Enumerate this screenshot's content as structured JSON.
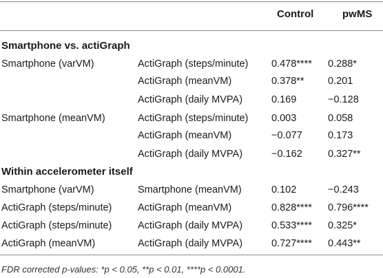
{
  "header": {
    "col_control": "Control",
    "col_pwms": "pwMS"
  },
  "sections": {
    "s1_title": "Smartphone vs. actiGraph",
    "s2_title": "Within accelerometer itself"
  },
  "rows": [
    {
      "m1": "Smartphone (varVM)",
      "m2": "ActiGraph (steps/minute)",
      "control": "0.478****",
      "pwms": "0.288*"
    },
    {
      "m1": "",
      "m2": "ActiGraph (meanVM)",
      "control": "0.378**",
      "pwms": "0.201"
    },
    {
      "m1": "",
      "m2": "ActiGraph (daily MVPA)",
      "control": "0.169",
      "pwms": "−0.128"
    },
    {
      "m1": "Smartphone (meanVM)",
      "m2": "ActiGraph (steps/minute)",
      "control": "0.003",
      "pwms": "0.058"
    },
    {
      "m1": "",
      "m2": "ActiGraph (meanVM)",
      "control": "−0.077",
      "pwms": "0.173"
    },
    {
      "m1": "",
      "m2": "ActiGraph (daily MVPA)",
      "control": "−0.162",
      "pwms": "0.327**"
    },
    {
      "m1": "Smartphone (varVM)",
      "m2": "Smartphone (meanVM)",
      "control": "0.102",
      "pwms": "−0.243"
    },
    {
      "m1": "ActiGraph (steps/minute)",
      "m2": "ActiGraph (meanVM)",
      "control": "0.828****",
      "pwms": "0.796****"
    },
    {
      "m1": "ActiGraph (steps/minute)",
      "m2": "ActiGraph (daily MVPA)",
      "control": "0.533****",
      "pwms": "0.325*"
    },
    {
      "m1": "ActiGraph (meanVM)",
      "m2": "ActiGraph (daily MVPA)",
      "control": "0.727****",
      "pwms": "0.443**"
    }
  ],
  "footnote": "FDR corrected p-values: *p < 0.05, **p < 0.01, ****p < 0.0001."
}
